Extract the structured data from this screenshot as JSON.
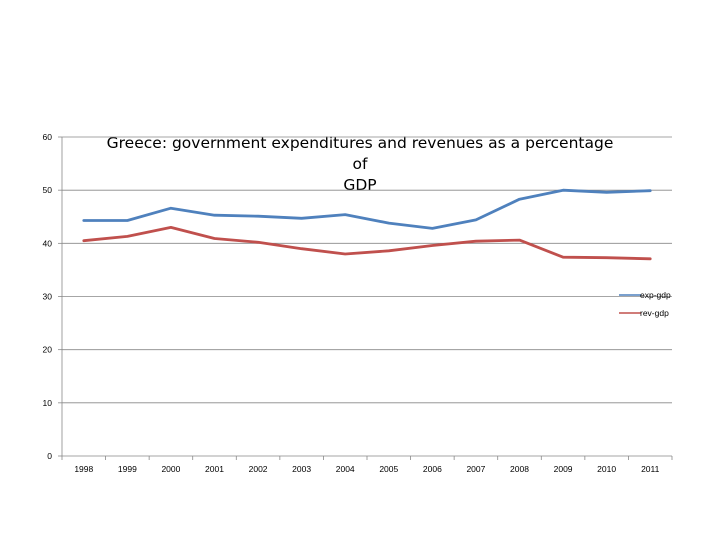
{
  "chart_data": {
    "type": "line",
    "title_lines": [
      "Greece: government expenditures and revenues as a percentage of",
      "GDP"
    ],
    "xlabel": "",
    "ylabel": "",
    "categories": [
      "1998",
      "1999",
      "2000",
      "2001",
      "2002",
      "2003",
      "2004",
      "2005",
      "2006",
      "2007",
      "2008",
      "2009",
      "2010",
      "2011"
    ],
    "ylim": [
      0,
      60
    ],
    "yticks": [
      0,
      10,
      20,
      30,
      40,
      50,
      60
    ],
    "grid": true,
    "legend": "right",
    "series": [
      {
        "name": "exp-gdp",
        "color": "#4f81bd",
        "values": [
          44.3,
          44.3,
          46.6,
          45.3,
          45.1,
          44.7,
          45.4,
          43.8,
          42.8,
          44.4,
          48.3,
          50.0,
          49.6,
          49.9
        ]
      },
      {
        "name": "rev-gdp",
        "color": "#c0504d",
        "values": [
          40.5,
          41.3,
          43.0,
          40.9,
          40.2,
          39.0,
          38.0,
          38.6,
          39.6,
          40.4,
          40.6,
          37.4,
          37.3,
          37.1
        ]
      }
    ]
  }
}
